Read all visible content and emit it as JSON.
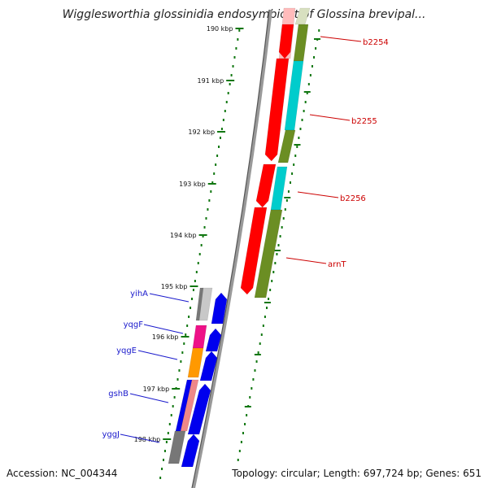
{
  "title": "Wigglesworthia glossinidia endosymbiont of Glossina brevipal...",
  "accession": "Accession: NC_004344",
  "topology": "Topology: circular; Length: 697,724 bp; Genes: 651",
  "colors": {
    "backbone": "#888888",
    "tick": "#117711",
    "red": "#ff0000",
    "olive": "#6b8e23",
    "cyan": "#00cccc",
    "blue": "#0000ee",
    "pink": "#ffbbbb",
    "pale_olive": "#d8e0c0",
    "gray": "#777777",
    "light_gray": "#c8c8c8",
    "magenta": "#ee1188",
    "orange": "#ff9900",
    "salmon": "#ee8888",
    "right_label": "#cc0000",
    "left_label": "#1a1acc"
  },
  "kbp_ticks": [
    "190 kbp",
    "191 kbp",
    "192 kbp",
    "193 kbp",
    "194 kbp",
    "195 kbp",
    "196 kbp",
    "197 kbp",
    "198 kbp"
  ],
  "genes_right": [
    {
      "label": "b2254"
    },
    {
      "label": "b2255"
    },
    {
      "label": "b2256"
    },
    {
      "label": "arnT"
    }
  ],
  "genes_left": [
    {
      "label": "yihA"
    },
    {
      "label": "yqgF"
    },
    {
      "label": "yqgE"
    },
    {
      "label": "gshB"
    },
    {
      "label": "yggJ"
    }
  ]
}
